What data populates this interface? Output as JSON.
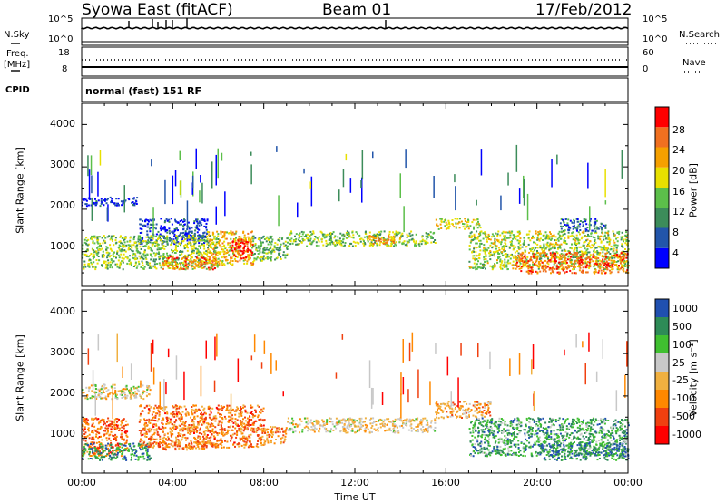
{
  "header": {
    "station": "Syowa East (fitACF)",
    "beam": "Beam 01",
    "date": "17/Feb/2012"
  },
  "status": {
    "nsky_label": "N.Sky",
    "nsearch_label": "N.Search",
    "freq_label_1": "Freq.",
    "freq_label_2": "[MHz]",
    "nave_label": "Nave",
    "cpid_label": "CPID",
    "cpid_value": "normal (fast) 151 RF",
    "nsky_ticks": [
      "10^5",
      "10^0"
    ],
    "nsearch_ticks": [
      "10^5",
      "10^0"
    ],
    "freq_ticks": [
      "18",
      "8"
    ],
    "nave_ticks": [
      "60",
      "0"
    ]
  },
  "colors": {
    "power": [
      "#0000ff",
      "#2255aa",
      "#3c8c5a",
      "#5cbf4a",
      "#e8e000",
      "#f5a000",
      "#f07020",
      "#ff0000"
    ],
    "velocity": [
      "#ff0000",
      "#f04010",
      "#ff8800",
      "#f0b040",
      "#c8c8c8",
      "#40c030",
      "#2e8b57",
      "#2050b0"
    ]
  },
  "chart_data": [
    {
      "type": "heatmap",
      "name": "power",
      "ylabel": "Slant Range [km]",
      "y_ticks": [
        "1000",
        "2000",
        "3000",
        "4000"
      ],
      "ylim": [
        180,
        4500
      ],
      "xlim": [
        0,
        24
      ],
      "colorbar": {
        "label": "Power [dB]",
        "ticks": [
          "4",
          "8",
          "12",
          "16",
          "20",
          "24",
          "28"
        ],
        "range": [
          0,
          32
        ]
      },
      "regions": [
        {
          "t0": 0.0,
          "t1": 2.5,
          "r0": 2100,
          "r1": 2300,
          "level": 0.08
        },
        {
          "t0": 2.5,
          "t1": 5.5,
          "r0": 1200,
          "r1": 1800,
          "level": 0.15
        },
        {
          "t0": 0.0,
          "t1": 6.0,
          "r0": 600,
          "r1": 1400,
          "level": 0.45
        },
        {
          "t0": 3.5,
          "t1": 6.0,
          "r0": 600,
          "r1": 900,
          "level": 0.78
        },
        {
          "t0": 5.5,
          "t1": 7.5,
          "r0": 700,
          "r1": 1500,
          "level": 0.62
        },
        {
          "t0": 6.5,
          "t1": 7.5,
          "r0": 850,
          "r1": 1300,
          "level": 0.9
        },
        {
          "t0": 7.5,
          "t1": 9.0,
          "r0": 800,
          "r1": 1400,
          "level": 0.4
        },
        {
          "t0": 9.0,
          "t1": 15.5,
          "r0": 1150,
          "r1": 1500,
          "level": 0.45
        },
        {
          "t0": 12.5,
          "t1": 14.0,
          "r0": 1200,
          "r1": 1400,
          "level": 0.72
        },
        {
          "t0": 15.5,
          "t1": 17.5,
          "r0": 1550,
          "r1": 1800,
          "level": 0.55
        },
        {
          "t0": 17.0,
          "t1": 24.0,
          "r0": 600,
          "r1": 1500,
          "level": 0.5
        },
        {
          "t0": 19.0,
          "t1": 24.0,
          "r0": 500,
          "r1": 1000,
          "level": 0.8
        },
        {
          "t0": 21.0,
          "t1": 23.0,
          "r0": 1500,
          "r1": 1800,
          "level": 0.25
        }
      ]
    },
    {
      "type": "heatmap",
      "name": "velocity",
      "ylabel": "Slant Range [km]",
      "y_ticks": [
        "1000",
        "2000",
        "3000",
        "4000"
      ],
      "ylim": [
        180,
        4500
      ],
      "xlim": [
        0,
        24
      ],
      "x_ticks": [
        "00:00",
        "04:00",
        "08:00",
        "12:00",
        "16:00",
        "20:00",
        "00:00"
      ],
      "xlabel": "Time UT",
      "colorbar": {
        "label": "Velocity [m s⁻¹]",
        "ticks": [
          "-1000",
          "-500",
          "-100",
          "-25",
          "25",
          "100",
          "500",
          "1000"
        ]
      },
      "regions": [
        {
          "t0": 0.0,
          "t1": 3.0,
          "r0": 1950,
          "r1": 2300,
          "level": 0.5
        },
        {
          "t0": 0.0,
          "t1": 2.0,
          "r0": 600,
          "r1": 1500,
          "level": 0.25
        },
        {
          "t0": 0.0,
          "t1": 3.0,
          "r0": 500,
          "r1": 900,
          "level": 0.8
        },
        {
          "t0": 2.5,
          "t1": 8.0,
          "r0": 800,
          "r1": 1800,
          "level": 0.28
        },
        {
          "t0": 3.5,
          "t1": 6.0,
          "r0": 750,
          "r1": 950,
          "level": 0.3
        },
        {
          "t0": 8.0,
          "t1": 9.0,
          "r0": 900,
          "r1": 1300,
          "level": 0.32
        },
        {
          "t0": 9.0,
          "t1": 15.5,
          "r0": 1150,
          "r1": 1500,
          "level": 0.5
        },
        {
          "t0": 15.5,
          "t1": 18.0,
          "r0": 1500,
          "r1": 1900,
          "level": 0.38
        },
        {
          "t0": 17.0,
          "t1": 24.0,
          "r0": 600,
          "r1": 1500,
          "level": 0.75
        },
        {
          "t0": 20.0,
          "t1": 24.0,
          "r0": 500,
          "r1": 900,
          "level": 0.85
        }
      ]
    }
  ]
}
